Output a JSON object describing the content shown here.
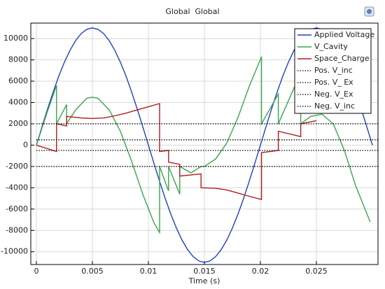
{
  "chart_data": {
    "type": "line",
    "title": "Global  Global",
    "x_label": "Time (s)",
    "xlim": [
      -0.0005,
      0.0305
    ],
    "ylim": [
      -11200,
      11450
    ],
    "xticks": [
      0,
      0.005,
      0.01,
      0.015,
      0.02,
      0.025
    ],
    "yticks": [
      -10000,
      -8000,
      -6000,
      -4000,
      -2000,
      0,
      2000,
      4000,
      6000,
      8000,
      10000
    ],
    "grid": true,
    "legend": "upper right",
    "series": [
      {
        "name": "Applied Voltage",
        "color": "#1f3fc8",
        "dashed": false,
        "x": [
          0,
          0.0005,
          0.001,
          0.0015,
          0.002,
          0.0025,
          0.003,
          0.0035,
          0.004,
          0.0045,
          0.005,
          0.0055,
          0.006,
          0.0065,
          0.007,
          0.0075,
          0.008,
          0.0085,
          0.009,
          0.0095,
          0.01,
          0.0105,
          0.011,
          0.0115,
          0.012,
          0.0125,
          0.013,
          0.0135,
          0.014,
          0.0145,
          0.015,
          0.0155,
          0.016,
          0.0165,
          0.017,
          0.0175,
          0.018,
          0.0185,
          0.019,
          0.0195,
          0.02,
          0.0205,
          0.021,
          0.0215,
          0.022,
          0.0225,
          0.023,
          0.0235,
          0.024,
          0.0245,
          0.025,
          0.0255,
          0.026,
          0.0265,
          0.027,
          0.0275,
          0.028,
          0.0285,
          0.029,
          0.0295,
          0.03
        ],
        "values": [
          0,
          1721,
          3399,
          4994,
          6472,
          7778,
          8899,
          9801,
          10462,
          10865,
          11000,
          10865,
          10462,
          9801,
          8899,
          7778,
          6472,
          4994,
          3399,
          1721,
          0,
          -1721,
          -3399,
          -4994,
          -6472,
          -7778,
          -8899,
          -9801,
          -10462,
          -10865,
          -11000,
          -10865,
          -10462,
          -9801,
          -8899,
          -7778,
          -6472,
          -4994,
          -3399,
          -1721,
          0,
          1721,
          3399,
          4994,
          6472,
          7778,
          8899,
          9801,
          10462,
          10865,
          11000,
          10865,
          10462,
          9801,
          8899,
          7778,
          6472,
          4994,
          3399,
          1721,
          0
        ]
      },
      {
        "name": "V_Cavity",
        "color": "#3aa64a",
        "dashed": false,
        "x": [
          0,
          0.001,
          0.0018,
          0.0018,
          0.0027,
          0.0027,
          0.0035,
          0.0045,
          0.005,
          0.0055,
          0.0065,
          0.0075,
          0.0085,
          0.0095,
          0.0105,
          0.011,
          0.011,
          0.0118,
          0.0118,
          0.0128,
          0.0128,
          0.0138,
          0.0147,
          0.015,
          0.016,
          0.017,
          0.018,
          0.019,
          0.0201,
          0.0201,
          0.0216,
          0.0216,
          0.0236,
          0.0236,
          0.0245,
          0.0255,
          0.0265,
          0.0275,
          0.0285,
          0.0298
        ],
        "values": [
          0,
          3200,
          5600,
          2000,
          3800,
          2000,
          3300,
          4400,
          4500,
          4400,
          3300,
          1300,
          -1500,
          -4600,
          -7300,
          -8200,
          -2000,
          -4300,
          -2000,
          -4600,
          -2000,
          -2600,
          -2000,
          -2000,
          -1300,
          200,
          2600,
          5500,
          8300,
          2000,
          4800,
          2000,
          6800,
          2000,
          2700,
          2900,
          2000,
          -500,
          -3800,
          -7200
        ]
      },
      {
        "name": "Space_Charge",
        "color": "#b31c1c",
        "dashed": false,
        "x": [
          0,
          0.0018,
          0.0018,
          0.0027,
          0.0027,
          0.004,
          0.005,
          0.006,
          0.007,
          0.008,
          0.009,
          0.01,
          0.011,
          0.011,
          0.0118,
          0.0118,
          0.0128,
          0.0128,
          0.0147,
          0.0147,
          0.016,
          0.017,
          0.018,
          0.019,
          0.0201,
          0.0201,
          0.0216,
          0.0216,
          0.0236,
          0.0236,
          0.025
        ],
        "values": [
          0,
          -600,
          2000,
          1800,
          2700,
          2550,
          2500,
          2550,
          2750,
          3000,
          3300,
          3600,
          3900,
          -600,
          -500,
          -1600,
          -1800,
          -2900,
          -2700,
          -4000,
          -4050,
          -4200,
          -4500,
          -4800,
          -5100,
          -700,
          -500,
          1300,
          800,
          2000,
          2300
        ]
      },
      {
        "name": "Pos. V_inc",
        "color": "#000000",
        "dashed": true,
        "x": [
          0,
          0.0305
        ],
        "values": [
          2000,
          2000
        ]
      },
      {
        "name": "Pos. V_ Ex",
        "color": "#000000",
        "dashed": true,
        "x": [
          0,
          0.0305
        ],
        "values": [
          500,
          500
        ]
      },
      {
        "name": "Neg. V_Ex",
        "color": "#000000",
        "dashed": true,
        "x": [
          0,
          0.0305
        ],
        "values": [
          -500,
          -500
        ]
      },
      {
        "name": "Neg. V_inc",
        "color": "#000000",
        "dashed": true,
        "x": [
          0,
          0.0305
        ],
        "values": [
          -2000,
          -2000
        ]
      }
    ]
  }
}
